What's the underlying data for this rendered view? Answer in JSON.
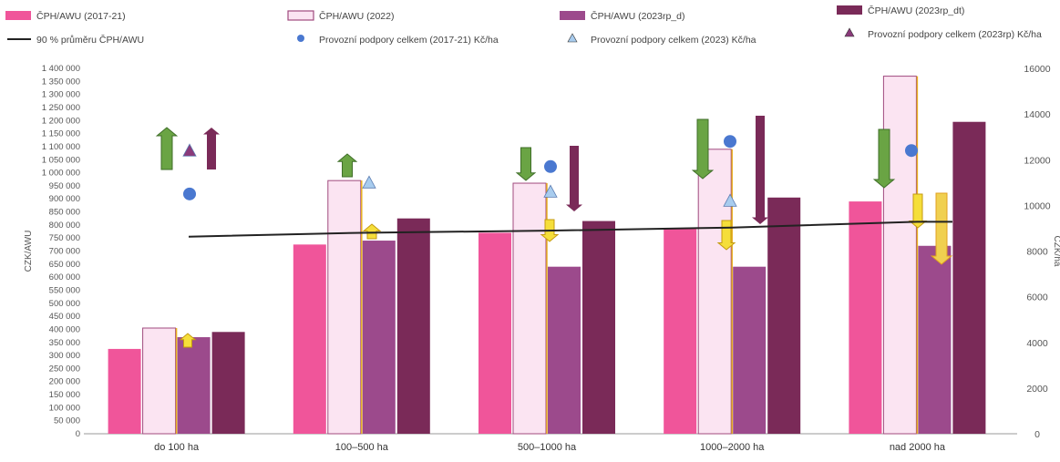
{
  "chart_data": {
    "type": "bar",
    "categories": [
      "do 100 ha",
      "100–500 ha",
      "500–1000 ha",
      "1000–2000 ha",
      "nad 2000 ha"
    ],
    "ylabel": "CZK/AWU",
    "y2label": "CZK/ha",
    "ylim": [
      0,
      1400000
    ],
    "y2lim": [
      0,
      16000
    ],
    "yticks": [
      0,
      50000,
      100000,
      150000,
      200000,
      250000,
      300000,
      350000,
      400000,
      450000,
      500000,
      550000,
      600000,
      650000,
      700000,
      750000,
      800000,
      850000,
      900000,
      950000,
      1000000,
      1050000,
      1100000,
      1150000,
      1200000,
      1250000,
      1300000,
      1350000,
      1400000
    ],
    "ytick_labels": [
      "0",
      "50 000",
      "100 000",
      "150 000",
      "200 000",
      "250 000",
      "300 000",
      "350 000",
      "400 000",
      "450 000",
      "500 000",
      "550 000",
      "600 000",
      "650 000",
      "700 000",
      "750 000",
      "800 000",
      "850 000",
      "900 000",
      "950 000",
      "1 000 000",
      "1 050 000",
      "1 100 000",
      "1 150 000",
      "1 200 000",
      "1 250 000",
      "1 300 000",
      "1 350 000",
      "1 400 000"
    ],
    "y2ticks": [
      0,
      2000,
      4000,
      6000,
      8000,
      10000,
      12000,
      14000,
      16000
    ],
    "y2tick_labels": [
      "0",
      "2000",
      "4000",
      "6000",
      "8000",
      "10000",
      "12000",
      "14000",
      "16000"
    ],
    "series": [
      {
        "name": "ČPH/AWU (2017-21)",
        "kind": "bar",
        "color": "#f0559a",
        "values": [
          325000,
          725000,
          770000,
          785000,
          890000
        ]
      },
      {
        "name": "ČPH/AWU (2022)",
        "kind": "bar",
        "color": "#fbe4f2",
        "stroke": "#a04a7e",
        "values": [
          405000,
          970000,
          960000,
          1090000,
          1370000
        ]
      },
      {
        "name": "ČPH/AWU (2023rp_d)",
        "kind": "bar",
        "color": "#9c4a8c",
        "values": [
          370000,
          740000,
          640000,
          640000,
          720000
        ]
      },
      {
        "name": "ČPH/AWU (2023rp_dt)",
        "kind": "bar",
        "color": "#7a2a58",
        "values": [
          390000,
          825000,
          815000,
          905000,
          1195000
        ]
      },
      {
        "name": "90 % průměru ČPH/AWU",
        "kind": "line",
        "color": "#222222",
        "values": [
          755000,
          770000,
          778000,
          790000,
          812000
        ]
      },
      {
        "name": "Provozní podpory celkem (2017-21) Kč/ha",
        "kind": "marker",
        "marker": "circle",
        "color": "#4a78d0",
        "values": [
          10500,
          null,
          11700,
          12800,
          12400
        ]
      },
      {
        "name": "Provozní podpory celkem (2023) Kč/ha",
        "kind": "marker",
        "marker": "triangle",
        "color": "#a8ccee",
        "values": [
          null,
          11000,
          10600,
          10200,
          null
        ]
      },
      {
        "name": "Provozní podpory celkem (2023rp) Kč/ha",
        "kind": "marker",
        "marker": "triangle",
        "color": "#8a3a7a",
        "values": [
          12400,
          null,
          null,
          null,
          null
        ]
      }
    ],
    "legend": [
      {
        "label": "ČPH/AWU (2017-21)",
        "symbol": "rect",
        "color": "#f0559a"
      },
      {
        "label": "ČPH/AWU (2022)",
        "symbol": "rect",
        "color": "#fbe4f2",
        "stroke": "#a04a7e"
      },
      {
        "label": "ČPH/AWU (2023rp_d)",
        "symbol": "rect",
        "color": "#9c4a8c"
      },
      {
        "label": "ČPH/AWU (2023rp_dt)",
        "symbol": "rect",
        "color": "#7a2a58"
      },
      {
        "label": "90 % průměru ČPH/AWU",
        "symbol": "line",
        "color": "#222222"
      },
      {
        "label": "Provozní podpory celkem (2017-21) Kč/ha",
        "symbol": "circle",
        "color": "#4a78d0"
      },
      {
        "label": "Provozní podpory celkem (2023) Kč/ha",
        "symbol": "triangle",
        "color": "#a8ccee"
      },
      {
        "label": "Provozní podpory celkem (2023rp) Kč/ha",
        "symbol": "triangle",
        "color": "#8a3a7a"
      }
    ],
    "legend_position": "top",
    "grid": false
  }
}
